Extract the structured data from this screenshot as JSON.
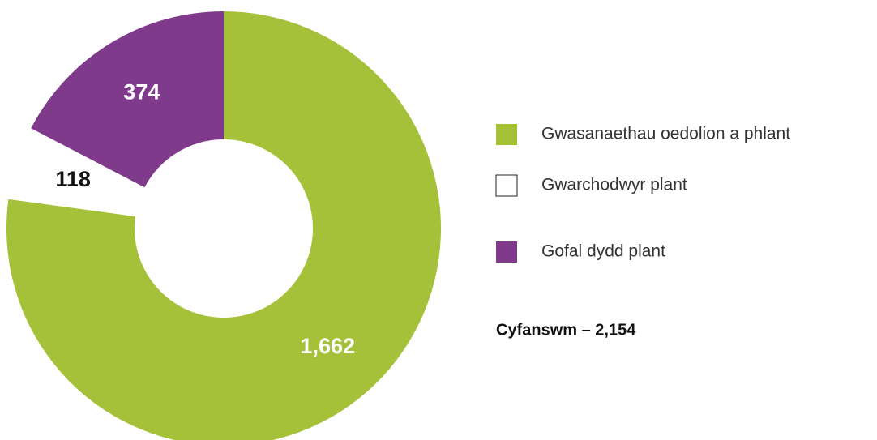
{
  "chart_data": {
    "type": "pie",
    "categories": [
      "Gwasanaethau oedolion a phlant",
      "Gwarchodwyr plant",
      "Gofal dydd plant"
    ],
    "values": [
      1662,
      118,
      374
    ],
    "value_labels": [
      "1,662",
      "118",
      "374"
    ],
    "colors": [
      "#a4c139",
      "#ffffff",
      "#7f3a8c"
    ],
    "label_colors": [
      "#ffffff",
      "#111111",
      "#ffffff"
    ],
    "total_label": "Cyfanswm – 2,154"
  }
}
